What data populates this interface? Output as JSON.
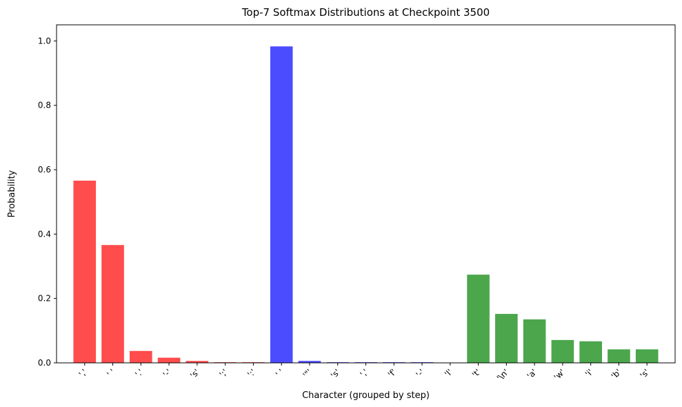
{
  "chart_data": {
    "type": "bar",
    "title": "Top-7 Softmax Distributions at Checkpoint 3500",
    "xlabel": "Character (grouped by step)",
    "ylabel": "Probability",
    "ylim": [
      0,
      1.0
    ],
    "yticks": [
      "0.0",
      "0.2",
      "0.4",
      "0.6",
      "0.8",
      "1.0"
    ],
    "grid": false,
    "categories": [
      "','",
      "' '",
      "'.'",
      "'-'",
      "'s'",
      "';'",
      "':'",
      "' '",
      "'\"'",
      "'s'",
      "','",
      "'f'",
      "'-'",
      "'l'",
      "'t'",
      "'\\n'",
      "'a'",
      "'w'",
      "'i'",
      "'b'",
      "'s'"
    ],
    "values": [
      0.566,
      0.366,
      0.037,
      0.016,
      0.006,
      0.002,
      0.002,
      0.983,
      0.006,
      0.002,
      0.002,
      0.002,
      0.002,
      0.001,
      0.274,
      0.152,
      0.135,
      0.071,
      0.067,
      0.042,
      0.042
    ],
    "colors": [
      "#ff4c4c",
      "#ff4c4c",
      "#ff4c4c",
      "#ff4c4c",
      "#ff4c4c",
      "#ff4c4c",
      "#ff4c4c",
      "#4c4cff",
      "#4c4cff",
      "#4c4cff",
      "#4c4cff",
      "#4c4cff",
      "#4c4cff",
      "#4c4cff",
      "#4ca64c",
      "#4ca64c",
      "#4ca64c",
      "#4ca64c",
      "#4ca64c",
      "#4ca64c",
      "#4ca64c"
    ]
  }
}
